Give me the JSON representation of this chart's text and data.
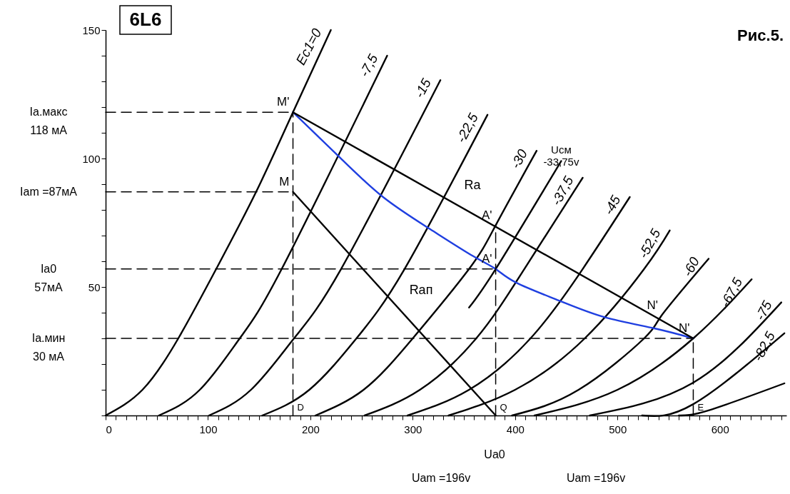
{
  "chart_data": {
    "type": "line",
    "title": "6L6",
    "xlim": [
      0,
      665
    ],
    "ylim": [
      0,
      150
    ],
    "xticks": [
      0,
      {
        "value": 10,
        "label": null
      },
      {
        "value": 20,
        "label": null
      },
      {
        "value": 30,
        "label": null
      },
      {
        "value": 40,
        "label": null
      },
      {
        "value": 50,
        "label": null
      },
      {
        "value": 60,
        "label": null
      },
      {
        "value": 70,
        "label": null
      },
      {
        "value": 80,
        "label": null
      },
      {
        "value": 90,
        "label": null
      },
      100,
      {
        "value": 110,
        "label": null
      },
      {
        "value": 120,
        "label": null
      },
      {
        "value": 130,
        "label": null
      },
      {
        "value": 140,
        "label": null
      },
      {
        "value": 150,
        "label": null
      },
      {
        "value": 160,
        "label": null
      },
      {
        "value": 170,
        "label": null
      },
      {
        "value": 180,
        "label": null
      },
      {
        "value": 190,
        "label": null
      },
      200,
      {
        "value": 210,
        "label": null
      },
      {
        "value": 220,
        "label": null
      },
      {
        "value": 230,
        "label": null
      },
      {
        "value": 240,
        "label": null
      },
      {
        "value": 250,
        "label": null
      },
      {
        "value": 260,
        "label": null
      },
      {
        "value": 270,
        "label": null
      },
      {
        "value": 280,
        "label": null
      },
      {
        "value": 290,
        "label": null
      },
      300,
      {
        "value": 310,
        "label": null
      },
      {
        "value": 320,
        "label": null
      },
      {
        "value": 330,
        "label": null
      },
      {
        "value": 340,
        "label": null
      },
      {
        "value": 350,
        "label": null
      },
      {
        "value": 360,
        "label": null
      },
      {
        "value": 370,
        "label": null
      },
      {
        "value": 380,
        "label": null
      },
      {
        "value": 390,
        "label": null
      },
      400,
      {
        "value": 410,
        "label": null
      },
      {
        "value": 420,
        "label": null
      },
      {
        "value": 430,
        "label": null
      },
      {
        "value": 440,
        "label": null
      },
      {
        "value": 450,
        "label": null
      },
      {
        "value": 460,
        "label": null
      },
      {
        "value": 470,
        "label": null
      },
      {
        "value": 480,
        "label": null
      },
      {
        "value": 490,
        "label": null
      },
      500,
      {
        "value": 510,
        "label": null
      },
      {
        "value": 520,
        "label": null
      },
      {
        "value": 530,
        "label": null
      },
      {
        "value": 540,
        "label": null
      },
      {
        "value": 550,
        "label": null
      },
      {
        "value": 560,
        "label": null
      },
      {
        "value": 570,
        "label": null
      },
      {
        "value": 580,
        "label": null
      },
      {
        "value": 590,
        "label": null
      },
      600,
      {
        "value": 610,
        "label": null
      },
      {
        "value": 620,
        "label": null
      },
      {
        "value": 630,
        "label": null
      },
      {
        "value": 640,
        "label": null
      },
      {
        "value": 650,
        "label": null
      },
      {
        "value": 660,
        "label": null
      }
    ],
    "yticks": [
      {
        "value": 0,
        "label": null
      },
      {
        "value": 10,
        "label": null
      },
      {
        "value": 20,
        "label": null
      },
      {
        "value": 30,
        "label": null
      },
      {
        "value": 40,
        "label": null
      },
      50,
      {
        "value": 60,
        "label": null
      },
      {
        "value": 70,
        "label": null
      },
      {
        "value": 80,
        "label": null
      },
      {
        "value": 90,
        "label": null
      },
      100,
      {
        "value": 110,
        "label": null
      },
      {
        "value": 120,
        "label": null
      },
      {
        "value": 130,
        "label": null
      },
      {
        "value": 140,
        "label": null
      },
      150
    ],
    "line_style": "solid",
    "series": [
      {
        "name": "Ec1=0",
        "color": "#000000",
        "x": [
          0,
          36,
          71,
          108,
          147,
          183,
          220
        ],
        "values": [
          0,
          10,
          30,
          57,
          87,
          118,
          150
        ]
      },
      {
        "name": "-7,5",
        "color": "#000000",
        "x": [
          52,
          92,
          131,
          172,
          275
        ],
        "values": [
          0,
          10,
          30,
          57,
          140
        ]
      },
      {
        "name": "-15",
        "color": "#000000",
        "x": [
          101,
          142,
          184,
          230,
          327
        ],
        "values": [
          0,
          10,
          30,
          57,
          130.5
        ]
      },
      {
        "name": "-22,5",
        "color": "#000000",
        "x": [
          153,
          199,
          245,
          292,
          373
        ],
        "values": [
          0,
          10,
          30,
          57,
          117
        ]
      },
      {
        "name": "-30",
        "color": "#000000",
        "x": [
          205,
          252,
          300,
          355,
          381,
          421
        ],
        "values": [
          0,
          10,
          30,
          57,
          74,
          103
        ]
      },
      {
        "name": "Ucм\n-33,75v",
        "color": "#000000",
        "x": [
          355,
          381,
          445
        ],
        "values": [
          42,
          57,
          99
        ]
      },
      {
        "name": "-37,5",
        "color": "#000000",
        "x": [
          253,
          307,
          362,
          409,
          466
        ],
        "values": [
          0,
          10,
          30,
          57,
          92.5
        ]
      },
      {
        "name": "-45",
        "color": "#000000",
        "x": [
          295,
          355,
          415,
          466,
          512
        ],
        "values": [
          0,
          10,
          30,
          57,
          85
        ]
      },
      {
        "name": "-52,5",
        "color": "#000000",
        "x": [
          335,
          400,
          468,
          526,
          551
        ],
        "values": [
          0,
          10,
          30,
          57,
          72
        ]
      },
      {
        "name": "-60",
        "color": "#000000",
        "x": [
          397,
          462,
          526,
          543,
          589
        ],
        "values": [
          0,
          10,
          30,
          38.9,
          61
        ]
      },
      {
        "name": "-67,5",
        "color": "#000000",
        "x": [
          419,
          500,
          574,
          631
        ],
        "values": [
          0,
          10,
          30,
          53
        ]
      },
      {
        "name": "-75",
        "color": "#000000",
        "x": [
          473,
          574,
          660
        ],
        "values": [
          0,
          12.8,
          44
        ]
      },
      {
        "name": "-82,5",
        "color": "#000000",
        "x": [
          524,
          574,
          663
        ],
        "values": [
          0,
          4.4,
          32
        ]
      },
      {
        "color": "#000000",
        "x": [
          560,
          589,
          663
        ],
        "values": [
          0,
          2,
          12.5
        ]
      },
      {
        "color": "#1f3fe0",
        "x": [
          183,
          229,
          271,
          317,
          359,
          381,
          401,
          443,
          487,
          536,
          574
        ],
        "values": [
          118,
          100.3,
          85,
          72.5,
          62,
          57,
          51.7,
          44.7,
          38.3,
          33.9,
          30
        ]
      },
      {
        "color": "#000000",
        "x": [
          183,
          574
        ],
        "values": [
          118,
          30
        ]
      },
      {
        "color": "#000000",
        "x": [
          183,
          381
        ],
        "values": [
          87,
          0
        ]
      },
      {
        "color": "#000000",
        "line_style": "dashed",
        "x": [
          0,
          183
        ],
        "values": [
          118,
          118
        ]
      },
      {
        "color": "#000000",
        "line_style": "dashed",
        "x": [
          0,
          183
        ],
        "values": [
          87,
          87
        ]
      },
      {
        "color": "#000000",
        "line_style": "dashed",
        "x": [
          0,
          381
        ],
        "values": [
          57,
          57
        ]
      },
      {
        "color": "#000000",
        "line_style": "dashed",
        "x": [
          0,
          574
        ],
        "values": [
          30,
          30
        ]
      },
      {
        "color": "#000000",
        "line_style": "dashed",
        "x": [
          183,
          183
        ],
        "values": [
          0,
          118
        ]
      },
      {
        "color": "#000000",
        "line_style": "dashed",
        "x": [
          381,
          381
        ],
        "values": [
          0,
          74
        ]
      },
      {
        "color": "#000000",
        "line_style": "dashed",
        "x": [
          574,
          574
        ],
        "values": [
          0,
          30
        ]
      }
    ],
    "annotations": [
      "Рис.5.",
      {
        "text": "M'",
        "x": 183,
        "y": 118
      },
      {
        "text": "M",
        "x": 183,
        "y": 87
      },
      {
        "text": "A'",
        "x": 381,
        "y": 74
      },
      {
        "text": "A'",
        "x": 381,
        "y": 57
      },
      {
        "text": "N'",
        "x": 543,
        "y": 38.9
      },
      {
        "text": "N'",
        "x": 574,
        "y": 30
      },
      {
        "text": "D",
        "x": 183,
        "y": 0
      },
      {
        "text": "Q",
        "x": 381,
        "y": 0
      },
      {
        "text": "E",
        "x": 574,
        "y": 0
      },
      "Ra",
      "Rап",
      "Iа.макс\n118 мА",
      "Iam =87мА",
      "Iа0\n57мА",
      "Iа.мин\n30 мА",
      "Ua0",
      "Uam =196v",
      "Uam =196v"
    ]
  }
}
